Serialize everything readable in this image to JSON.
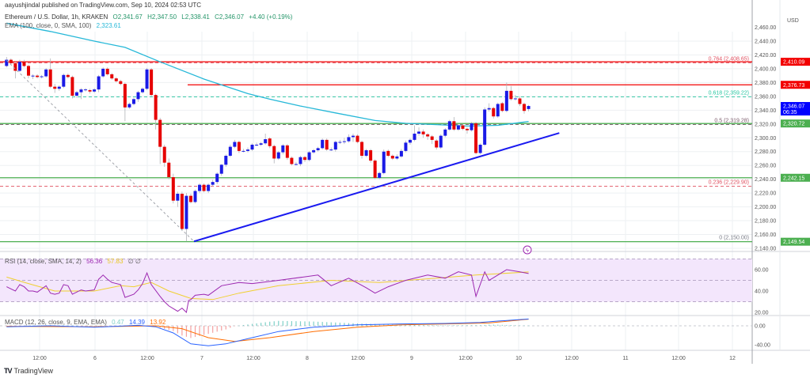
{
  "header": {
    "publisher": "aayushjindal published on TradingView.com, Sep 10, 2024 02:53 UTC",
    "symbol": "Ethereum / U.S. Dollar, 1h, KRAKEN",
    "open": "O2,341.67",
    "high": "H2,347.50",
    "low": "L2,338.41",
    "close": "C2,346.07",
    "change": "+4.40 (+0.19%)",
    "ema_label": "EMA (100, close, 0, SMA, 100)",
    "ema_value": "2,323.61"
  },
  "price_axis": {
    "currency": "USD",
    "ticks": [
      "2,460.00",
      "2,440.00",
      "2,420.00",
      "2,400.00",
      "2,380.00",
      "2,360.00",
      "2,340.00",
      "2,320.00",
      "2,300.00",
      "2,280.00",
      "2,260.00",
      "2,240.00",
      "2,220.00",
      "2,200.00",
      "2,180.00",
      "2,160.00",
      "2,140.00"
    ],
    "tags": [
      {
        "value": 2410.09,
        "label": "2,410.09",
        "color": "#f20000"
      },
      {
        "value": 2376.73,
        "label": "2,376.73",
        "color": "#f20000"
      },
      {
        "value": 2346.07,
        "label": "2,346.07",
        "sub": "06:35",
        "color": "#0000ff"
      },
      {
        "value": 2320.72,
        "label": "2,320.72",
        "color": "#4caf50"
      },
      {
        "value": 2242.15,
        "label": "2,242.15",
        "color": "#4caf50"
      },
      {
        "value": 2149.54,
        "label": "2,149.54",
        "color": "#4caf50"
      }
    ]
  },
  "time_axis": [
    "12:00",
    "6",
    "12:00",
    "7",
    "12:00",
    "8",
    "12:00",
    "9",
    "12:00",
    "10",
    "12:00",
    "11",
    "12:00",
    "12"
  ],
  "levels": {
    "resistance_full": {
      "value": 2410.09,
      "color": "#f20000"
    },
    "resistance_short": {
      "value": 2376.73,
      "color": "#f20000"
    },
    "support_1": {
      "value": 2320.72,
      "color": "#4caf50"
    },
    "support_2": {
      "value": 2242.15,
      "color": "#4caf50"
    },
    "support_3": {
      "value": 2149.54,
      "color": "#4caf50"
    }
  },
  "fib": [
    {
      "ratio": 0.764,
      "value": 2408.65,
      "label": "0.764 (2,408.65)",
      "color": "#e05060"
    },
    {
      "ratio": 0.618,
      "value": 2359.22,
      "label": "0.618 (2,359.22)",
      "color": "#26c6a0"
    },
    {
      "ratio": 0.5,
      "value": 2319.28,
      "label": "0.5 (2,319.28)",
      "color": "#7a5a6a"
    },
    {
      "ratio": 0.236,
      "value": 2229.9,
      "label": "0.236 (2,229.90)",
      "color": "#e05060"
    },
    {
      "ratio": 0,
      "value": 2150.0,
      "label": "0 (2,150.00)",
      "color": "#787b86"
    }
  ],
  "trendline": {
    "from": [
      42,
      2150
    ],
    "to": [
      126,
      2307
    ],
    "color": "#1a1af0"
  },
  "fib_diagonal": {
    "from": [
      0,
      2412
    ],
    "to": [
      42,
      2150
    ]
  },
  "candle_colors": {
    "up": "#1a1ae6",
    "down": "#e60000"
  },
  "candles": [
    [
      2404,
      2417,
      2402,
      2413
    ],
    [
      2413,
      2415,
      2406,
      2408
    ],
    [
      2408,
      2410,
      2386,
      2397
    ],
    [
      2397,
      2413,
      2395,
      2410
    ],
    [
      2410,
      2413,
      2402,
      2404
    ],
    [
      2404,
      2406,
      2386,
      2390
    ],
    [
      2390,
      2392,
      2385,
      2390
    ],
    [
      2390,
      2392,
      2386,
      2388
    ],
    [
      2388,
      2391,
      2386,
      2389
    ],
    [
      2389,
      2401,
      2387,
      2399
    ],
    [
      2399,
      2415,
      2372,
      2374
    ],
    [
      2374,
      2378,
      2365,
      2371
    ],
    [
      2371,
      2376,
      2368,
      2374
    ],
    [
      2374,
      2393,
      2372,
      2391
    ],
    [
      2391,
      2393,
      2386,
      2388
    ],
    [
      2388,
      2390,
      2357,
      2361
    ],
    [
      2361,
      2368,
      2358,
      2366
    ],
    [
      2366,
      2372,
      2356,
      2370
    ],
    [
      2370,
      2372,
      2367,
      2370
    ],
    [
      2369,
      2371,
      2364,
      2367
    ],
    [
      2367,
      2372,
      2365,
      2370
    ],
    [
      2370,
      2391,
      2366,
      2389
    ],
    [
      2389,
      2402,
      2387,
      2400
    ],
    [
      2400,
      2402,
      2390,
      2392
    ],
    [
      2392,
      2394,
      2384,
      2386
    ],
    [
      2386,
      2388,
      2380,
      2382
    ],
    [
      2382,
      2384,
      2376,
      2378
    ],
    [
      2378,
      2380,
      2324,
      2344
    ],
    [
      2344,
      2351,
      2342,
      2349
    ],
    [
      2349,
      2358,
      2347,
      2356
    ],
    [
      2356,
      2368,
      2352,
      2366
    ],
    [
      2366,
      2373,
      2364,
      2371
    ],
    [
      2371,
      2401,
      2369,
      2399
    ],
    [
      2399,
      2401,
      2360,
      2362
    ],
    [
      2362,
      2364,
      2312,
      2326
    ],
    [
      2326,
      2329,
      2262,
      2287
    ],
    [
      2287,
      2290,
      2258,
      2264
    ],
    [
      2264,
      2270,
      2240,
      2243
    ],
    [
      2243,
      2248,
      2205,
      2209
    ],
    [
      2209,
      2222,
      2200,
      2219
    ],
    [
      2219,
      2222,
      2165,
      2168
    ],
    [
      2168,
      2220,
      2150,
      2216
    ],
    [
      2216,
      2219,
      2205,
      2207
    ],
    [
      2207,
      2225,
      2205,
      2223
    ],
    [
      2223,
      2234,
      2220,
      2232
    ],
    [
      2232,
      2234,
      2221,
      2223
    ],
    [
      2223,
      2234,
      2220,
      2232
    ],
    [
      2232,
      2239,
      2230,
      2236
    ],
    [
      2236,
      2250,
      2233,
      2248
    ],
    [
      2248,
      2262,
      2245,
      2261
    ],
    [
      2261,
      2276,
      2258,
      2274
    ],
    [
      2274,
      2290,
      2272,
      2287
    ],
    [
      2287,
      2297,
      2285,
      2294
    ],
    [
      2294,
      2296,
      2278,
      2281
    ],
    [
      2281,
      2284,
      2279,
      2281
    ],
    [
      2281,
      2286,
      2279,
      2283
    ],
    [
      2283,
      2292,
      2281,
      2290
    ],
    [
      2290,
      2293,
      2288,
      2290
    ],
    [
      2290,
      2294,
      2288,
      2292
    ],
    [
      2292,
      2306,
      2290,
      2298
    ],
    [
      2299,
      2301,
      2285,
      2288
    ],
    [
      2288,
      2290,
      2263,
      2270
    ],
    [
      2270,
      2281,
      2268,
      2279
    ],
    [
      2279,
      2291,
      2276,
      2289
    ],
    [
      2289,
      2291,
      2268,
      2271
    ],
    [
      2271,
      2273,
      2260,
      2262
    ],
    [
      2262,
      2265,
      2260,
      2262
    ],
    [
      2262,
      2274,
      2259,
      2272
    ],
    [
      2272,
      2274,
      2265,
      2268
    ],
    [
      2268,
      2281,
      2266,
      2279
    ],
    [
      2279,
      2284,
      2277,
      2282
    ],
    [
      2282,
      2287,
      2280,
      2285
    ],
    [
      2285,
      2299,
      2283,
      2297
    ],
    [
      2297,
      2299,
      2281,
      2283
    ],
    [
      2283,
      2286,
      2281,
      2283
    ],
    [
      2283,
      2296,
      2280,
      2294
    ],
    [
      2294,
      2297,
      2291,
      2294
    ],
    [
      2294,
      2300,
      2291,
      2295
    ],
    [
      2295,
      2305,
      2293,
      2301
    ],
    [
      2301,
      2306,
      2294,
      2303
    ],
    [
      2303,
      2305,
      2292,
      2294
    ],
    [
      2294,
      2296,
      2270,
      2274
    ],
    [
      2274,
      2284,
      2272,
      2282
    ],
    [
      2282,
      2284,
      2264,
      2267
    ],
    [
      2267,
      2269,
      2240,
      2242
    ],
    [
      2242,
      2251,
      2240,
      2249
    ],
    [
      2249,
      2283,
      2247,
      2280
    ],
    [
      2281,
      2283,
      2272,
      2274
    ],
    [
      2274,
      2276,
      2268,
      2270
    ],
    [
      2270,
      2276,
      2268,
      2273
    ],
    [
      2273,
      2284,
      2271,
      2281
    ],
    [
      2281,
      2296,
      2279,
      2293
    ],
    [
      2293,
      2299,
      2290,
      2297
    ],
    [
      2297,
      2318,
      2295,
      2306
    ],
    [
      2306,
      2315,
      2303,
      2309
    ],
    [
      2309,
      2312,
      2300,
      2305
    ],
    [
      2305,
      2307,
      2297,
      2302
    ],
    [
      2302,
      2304,
      2291,
      2297
    ],
    [
      2296,
      2298,
      2283,
      2286
    ],
    [
      2286,
      2305,
      2284,
      2303
    ],
    [
      2303,
      2314,
      2301,
      2312
    ],
    [
      2312,
      2326,
      2310,
      2324
    ],
    [
      2324,
      2330,
      2310,
      2312
    ],
    [
      2312,
      2320,
      2310,
      2318
    ],
    [
      2318,
      2320,
      2311,
      2313
    ],
    [
      2313,
      2315,
      2306,
      2311
    ],
    [
      2311,
      2323,
      2309,
      2321
    ],
    [
      2321,
      2323,
      2276,
      2278
    ],
    [
      2278,
      2292,
      2276,
      2290
    ],
    [
      2290,
      2344,
      2288,
      2341
    ],
    [
      2341,
      2350,
      2338,
      2343
    ],
    [
      2343,
      2345,
      2328,
      2331
    ],
    [
      2331,
      2351,
      2329,
      2349
    ],
    [
      2350,
      2352,
      2337,
      2339
    ],
    [
      2339,
      2380,
      2337,
      2368
    ],
    [
      2368,
      2375,
      2354,
      2356
    ],
    [
      2356,
      2362,
      2354,
      2357
    ],
    [
      2357,
      2360,
      2346,
      2349
    ],
    [
      2349,
      2351,
      2335,
      2339
    ],
    [
      2341.67,
      2347.5,
      2338.41,
      2346.07
    ]
  ],
  "ema": {
    "color": "#26b8d8",
    "points": [
      [
        0,
        2466
      ],
      [
        10,
        2454
      ],
      [
        20,
        2440
      ],
      [
        27,
        2431
      ],
      [
        35,
        2410
      ],
      [
        45,
        2385
      ],
      [
        55,
        2364
      ],
      [
        60,
        2356
      ],
      [
        67,
        2346
      ],
      [
        75,
        2336
      ],
      [
        84,
        2325
      ],
      [
        91,
        2321
      ],
      [
        105,
        2317
      ],
      [
        112,
        2318
      ],
      [
        119,
        2323.61
      ]
    ]
  },
  "rsi": {
    "label": "RSI (14, close, SMA, 14, 2)",
    "value": "56.36",
    "signal_value": "57.83",
    "extra": "∅ ∅",
    "color": "#9c27b0",
    "signal_color": "#f0d030",
    "band_color": "#f3e6fc",
    "ticks": [
      "60.00",
      "40.00",
      "20.00"
    ],
    "points": [
      [
        0,
        44
      ],
      [
        1,
        42
      ],
      [
        2,
        40
      ],
      [
        3,
        46
      ],
      [
        4,
        44
      ],
      [
        5,
        40
      ],
      [
        6,
        40
      ],
      [
        7,
        39
      ],
      [
        9,
        45
      ],
      [
        10,
        38
      ],
      [
        11,
        37
      ],
      [
        12,
        38
      ],
      [
        13,
        46
      ],
      [
        14,
        45
      ],
      [
        15,
        37
      ],
      [
        17,
        41
      ],
      [
        18,
        40
      ],
      [
        20,
        41
      ],
      [
        21,
        51
      ],
      [
        22,
        55
      ],
      [
        23,
        51
      ],
      [
        24,
        48
      ],
      [
        26,
        46
      ],
      [
        27,
        34
      ],
      [
        29,
        37
      ],
      [
        30,
        41
      ],
      [
        31,
        47
      ],
      [
        32,
        57
      ],
      [
        33,
        46
      ],
      [
        35,
        35
      ],
      [
        36,
        30
      ],
      [
        37,
        26
      ],
      [
        39,
        21
      ],
      [
        40,
        24
      ],
      [
        41,
        20
      ],
      [
        41.5,
        31
      ],
      [
        42,
        32
      ],
      [
        43,
        36
      ],
      [
        45,
        37
      ],
      [
        46,
        36
      ],
      [
        49,
        45
      ],
      [
        53,
        48
      ],
      [
        56,
        47
      ],
      [
        62,
        50
      ],
      [
        71,
        55
      ],
      [
        74,
        45
      ],
      [
        78,
        52
      ],
      [
        82,
        43
      ],
      [
        84,
        38
      ],
      [
        87,
        44
      ],
      [
        91,
        50
      ],
      [
        96,
        55
      ],
      [
        100,
        52
      ],
      [
        103,
        58
      ],
      [
        106,
        55
      ],
      [
        107,
        35
      ],
      [
        109,
        58
      ],
      [
        110,
        50
      ],
      [
        114,
        60
      ],
      [
        117,
        58
      ],
      [
        119,
        56.36
      ]
    ],
    "signal": [
      [
        0,
        53
      ],
      [
        5,
        47
      ],
      [
        11,
        40
      ],
      [
        20,
        40
      ],
      [
        26,
        45
      ],
      [
        29,
        44
      ],
      [
        33,
        48
      ],
      [
        37,
        40
      ],
      [
        42,
        33
      ],
      [
        47,
        32
      ],
      [
        53,
        38
      ],
      [
        62,
        45
      ],
      [
        74,
        50
      ],
      [
        85,
        48
      ],
      [
        98,
        52
      ],
      [
        107,
        55
      ],
      [
        119,
        57.83
      ]
    ]
  },
  "macd": {
    "label": "MACD (12, 26, close, 9, EMA, EMA)",
    "hist_value": "0.47",
    "macd_value": "14.39",
    "signal_value": "13.92",
    "hist_color": "#26a69a",
    "macd_color": "#2962ff",
    "signal_color": "#ff6d00",
    "ticks": [
      "0.00",
      "-40.00"
    ],
    "macd": [
      [
        0,
        -2
      ],
      [
        10,
        0
      ],
      [
        20,
        -3
      ],
      [
        30,
        1
      ],
      [
        34,
        -2
      ],
      [
        38,
        -15
      ],
      [
        42,
        -38
      ],
      [
        46,
        -42
      ],
      [
        50,
        -38
      ],
      [
        56,
        -25
      ],
      [
        62,
        -12
      ],
      [
        70,
        -3
      ],
      [
        80,
        2
      ],
      [
        90,
        4
      ],
      [
        100,
        5
      ],
      [
        108,
        7
      ],
      [
        112,
        10
      ],
      [
        119,
        14.39
      ]
    ],
    "signal": [
      [
        0,
        -1
      ],
      [
        20,
        -2
      ],
      [
        34,
        0
      ],
      [
        40,
        -6
      ],
      [
        46,
        -25
      ],
      [
        52,
        -33
      ],
      [
        60,
        -25
      ],
      [
        70,
        -12
      ],
      [
        80,
        -3
      ],
      [
        90,
        2
      ],
      [
        100,
        4
      ],
      [
        110,
        6
      ],
      [
        119,
        13.92
      ]
    ]
  },
  "footer": {
    "brand": "TradingView"
  }
}
